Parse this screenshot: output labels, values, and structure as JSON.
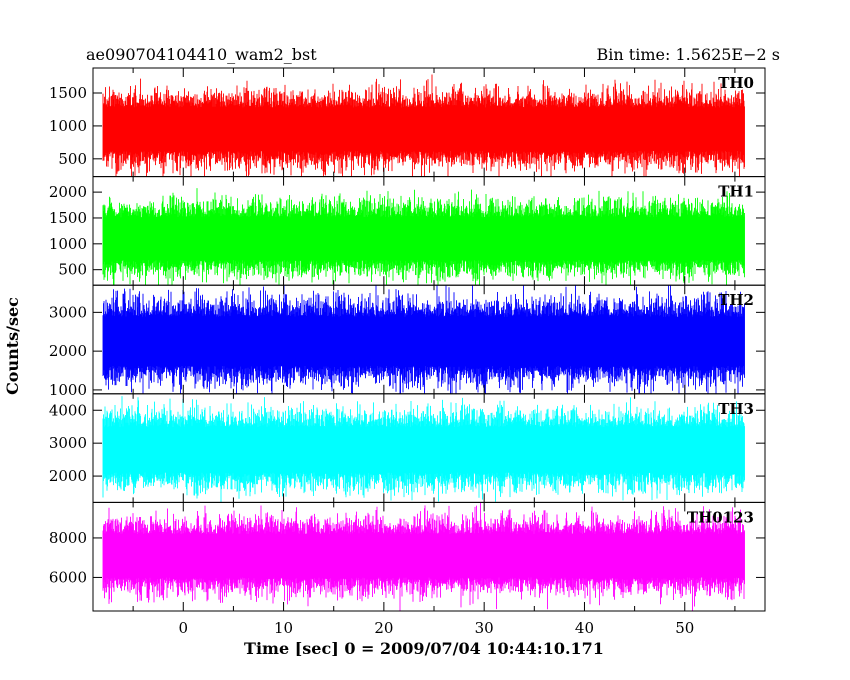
{
  "header": {
    "left": "ae090704104410_wam2_bst",
    "right": "Bin time: 1.5625E−2 s"
  },
  "chart_data": {
    "type": "line",
    "xlabel": "Time [sec] 0 = 2009/07/04 10:44:10.171",
    "ylabel": "Counts/sec",
    "xlim": [
      -9,
      58
    ],
    "xticks": [
      0,
      10,
      20,
      30,
      40,
      50
    ],
    "data_range": [
      -8,
      56
    ],
    "panels": [
      {
        "name": "TH0",
        "color": "#ff0000",
        "ylim": [
          230,
          1880
        ],
        "yticks": [
          500,
          1000,
          1500
        ],
        "mean": 950,
        "spread": 600,
        "min": 220,
        "max": 1880
      },
      {
        "name": "TH1",
        "color": "#00ff00",
        "ylim": [
          200,
          2300
        ],
        "yticks": [
          500,
          1000,
          1500,
          2000
        ],
        "mean": 1100,
        "spread": 750,
        "min": 200,
        "max": 2300
      },
      {
        "name": "TH2",
        "color": "#0000ff",
        "ylim": [
          900,
          3700
        ],
        "yticks": [
          1000,
          2000,
          3000
        ],
        "mean": 2250,
        "spread": 1150,
        "min": 900,
        "max": 3700
      },
      {
        "name": "TH3",
        "color": "#00ffff",
        "ylim": [
          1200,
          4500
        ],
        "yticks": [
          2000,
          3000,
          4000
        ],
        "mean": 2800,
        "spread": 1250,
        "min": 1200,
        "max": 4500
      },
      {
        "name": "TH0123",
        "color": "#ff00ff",
        "ylim": [
          4300,
          9800
        ],
        "yticks": [
          6000,
          8000
        ],
        "mean": 7100,
        "spread": 2000,
        "min": 4300,
        "max": 9800
      }
    ]
  }
}
